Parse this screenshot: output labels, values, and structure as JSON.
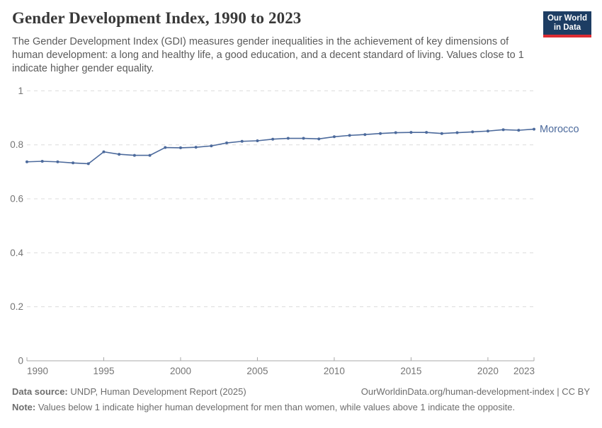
{
  "header": {
    "title": "Gender Development Index, 1990 to 2023",
    "subtitle": "The Gender Development Index (GDI) measures gender inequalities in the achievement of key dimensions of human development: a long and healthy life, a good education, and a decent standard of living. Values close to 1 indicate higher gender equality."
  },
  "logo": {
    "line1": "Our World",
    "line2": "in Data",
    "bg_color": "#1d3d63",
    "accent_color": "#dc2c33"
  },
  "chart_data": {
    "type": "line",
    "title": "Gender Development Index, 1990 to 2023",
    "xlabel": "",
    "ylabel": "",
    "xlim": [
      1990,
      2023
    ],
    "ylim": [
      0,
      1
    ],
    "x_ticks": [
      1990,
      1995,
      2000,
      2005,
      2010,
      2015,
      2020,
      2023
    ],
    "y_ticks": [
      0,
      0.2,
      0.4,
      0.6,
      0.8,
      1
    ],
    "grid": "horizontal-dashed",
    "legend_position": "end-of-line-label",
    "x": [
      1990,
      1991,
      1992,
      1993,
      1994,
      1995,
      1996,
      1997,
      1998,
      1999,
      2000,
      2001,
      2002,
      2003,
      2004,
      2005,
      2006,
      2007,
      2008,
      2009,
      2010,
      2011,
      2012,
      2013,
      2014,
      2015,
      2016,
      2017,
      2018,
      2019,
      2020,
      2021,
      2022,
      2023
    ],
    "series": [
      {
        "name": "Morocco",
        "color": "#4c6a9c",
        "values": [
          0.737,
          0.739,
          0.737,
          0.733,
          0.73,
          0.774,
          0.765,
          0.761,
          0.761,
          0.79,
          0.789,
          0.791,
          0.796,
          0.807,
          0.813,
          0.815,
          0.821,
          0.824,
          0.824,
          0.822,
          0.83,
          0.835,
          0.838,
          0.842,
          0.845,
          0.846,
          0.846,
          0.842,
          0.845,
          0.848,
          0.851,
          0.856,
          0.854,
          0.858
        ]
      }
    ]
  },
  "footer": {
    "datasource_label": "Data source:",
    "datasource_rest": " UNDP, Human Development Report (2025)",
    "rights": "OurWorldinData.org/human-development-index | CC BY",
    "note_label": "Note:",
    "note_rest": " Values below 1 indicate higher human development for men than women, while values above 1 indicate the opposite."
  }
}
